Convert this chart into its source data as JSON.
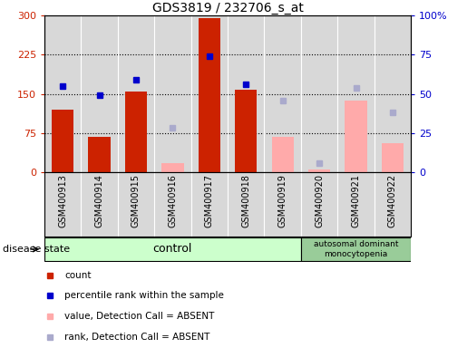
{
  "title": "GDS3819 / 232706_s_at",
  "samples": [
    "GSM400913",
    "GSM400914",
    "GSM400915",
    "GSM400916",
    "GSM400917",
    "GSM400918",
    "GSM400919",
    "GSM400920",
    "GSM400921",
    "GSM400922"
  ],
  "count_values": [
    120,
    68,
    155,
    null,
    295,
    158,
    null,
    null,
    null,
    null
  ],
  "count_absent_values": [
    null,
    null,
    null,
    18,
    null,
    null,
    68,
    5,
    138,
    55
  ],
  "rank_present_values": [
    165,
    148,
    178,
    null,
    222,
    168,
    null,
    null,
    null,
    null
  ],
  "rank_absent_values": [
    null,
    null,
    null,
    85,
    null,
    null,
    138,
    18,
    162,
    115
  ],
  "ylim_left": [
    0,
    300
  ],
  "ylim_right": [
    0,
    100
  ],
  "yticks_left": [
    0,
    75,
    150,
    225,
    300
  ],
  "yticks_right": [
    0,
    25,
    50,
    75,
    100
  ],
  "ytick_labels_left": [
    "0",
    "75",
    "150",
    "225",
    "300"
  ],
  "ytick_labels_right": [
    "0",
    "25",
    "50",
    "75",
    "100%"
  ],
  "n_control": 7,
  "n_disease": 3,
  "disease_label": "autosomal dominant\nmonocytopenia",
  "control_label": "control",
  "group_label": "disease state",
  "bar_color_present": "#cc2200",
  "bar_color_absent": "#ffaaaa",
  "dot_color_present": "#0000cc",
  "dot_color_absent": "#aaaacc",
  "bg_color_plot": "#d8d8d8",
  "bg_color_control": "#ccffcc",
  "bg_color_disease": "#99cc99",
  "legend_entries": [
    "count",
    "percentile rank within the sample",
    "value, Detection Call = ABSENT",
    "rank, Detection Call = ABSENT"
  ],
  "legend_colors": [
    "#cc2200",
    "#0000cc",
    "#ffaaaa",
    "#aaaacc"
  ]
}
